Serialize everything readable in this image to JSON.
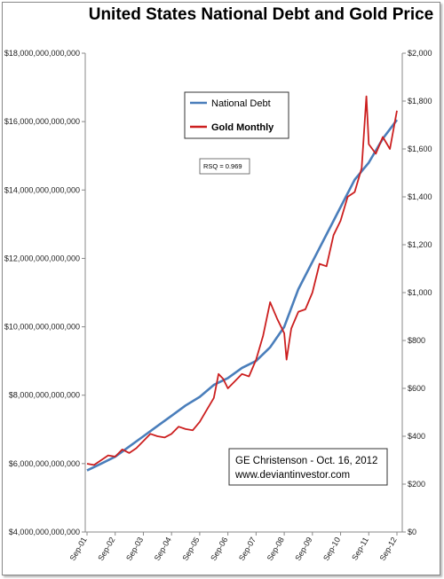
{
  "chart_data": {
    "type": "line",
    "title": "United States National Debt and Gold Price",
    "x_ticks": [
      "Sep-01",
      "Sep-02",
      "Sep-03",
      "Sep-04",
      "Sep-05",
      "Sep-06",
      "Sep-07",
      "Sep-08",
      "Sep-09",
      "Sep-10",
      "Sep-11",
      "Sep-12"
    ],
    "y_left": {
      "ticks": [
        "$4,000,000,000,000",
        "$6,000,000,000,000",
        "$8,000,000,000,000",
        "$10,000,000,000,000",
        "$12,000,000,000,000",
        "$14,000,000,000,000",
        "$16,000,000,000,000",
        "$18,000,000,000,000"
      ],
      "lim": [
        4000000000000,
        18000000000000
      ]
    },
    "y_right": {
      "ticks": [
        "$0",
        "$200",
        "$400",
        "$600",
        "$800",
        "$1,000",
        "$1,200",
        "$1,400",
        "$1,600",
        "$1,800",
        "$2,000"
      ],
      "lim": [
        0,
        2000
      ]
    },
    "series": [
      {
        "name": "National Debt",
        "axis": "left",
        "color": "#4a7ebb",
        "x": [
          "2001-09",
          "2002-03",
          "2002-09",
          "2003-03",
          "2003-09",
          "2004-03",
          "2004-09",
          "2005-03",
          "2005-09",
          "2006-03",
          "2006-09",
          "2007-03",
          "2007-09",
          "2008-03",
          "2008-09",
          "2009-03",
          "2009-09",
          "2010-03",
          "2010-09",
          "2011-03",
          "2011-09",
          "2012-03",
          "2012-09"
        ],
        "values": [
          5800000000000,
          6000000000000,
          6200000000000,
          6500000000000,
          6800000000000,
          7100000000000,
          7400000000000,
          7700000000000,
          7950000000000,
          8300000000000,
          8500000000000,
          8800000000000,
          9000000000000,
          9400000000000,
          10000000000000,
          11100000000000,
          11900000000000,
          12700000000000,
          13500000000000,
          14300000000000,
          14800000000000,
          15500000000000,
          16050000000000
        ]
      },
      {
        "name": "Gold Monthly",
        "axis": "right",
        "color": "#cc1f1f",
        "x": [
          "2001-09",
          "2001-12",
          "2002-03",
          "2002-06",
          "2002-09",
          "2002-12",
          "2003-03",
          "2003-06",
          "2003-09",
          "2003-12",
          "2004-03",
          "2004-06",
          "2004-09",
          "2004-12",
          "2005-03",
          "2005-06",
          "2005-09",
          "2005-12",
          "2006-03",
          "2006-05",
          "2006-07",
          "2006-09",
          "2006-12",
          "2007-03",
          "2007-06",
          "2007-09",
          "2007-12",
          "2008-03",
          "2008-06",
          "2008-09",
          "2008-10",
          "2008-12",
          "2009-03",
          "2009-06",
          "2009-09",
          "2009-12",
          "2010-03",
          "2010-06",
          "2010-09",
          "2010-12",
          "2011-03",
          "2011-06",
          "2011-08",
          "2011-09",
          "2011-12",
          "2012-03",
          "2012-06",
          "2012-09"
        ],
        "values": [
          285,
          280,
          300,
          320,
          315,
          345,
          330,
          350,
          380,
          410,
          400,
          395,
          410,
          440,
          430,
          425,
          460,
          510,
          560,
          660,
          640,
          600,
          630,
          660,
          650,
          720,
          820,
          960,
          890,
          830,
          720,
          850,
          920,
          930,
          1000,
          1120,
          1110,
          1240,
          1300,
          1400,
          1420,
          1520,
          1820,
          1620,
          1580,
          1650,
          1600,
          1760
        ]
      }
    ],
    "annotations": [
      "RSQ = 0.969",
      "GE Christenson  - Oct. 16, 2012",
      "www.deviantinvestor.com"
    ],
    "legend": "upper-left inside plot",
    "grid": false
  }
}
